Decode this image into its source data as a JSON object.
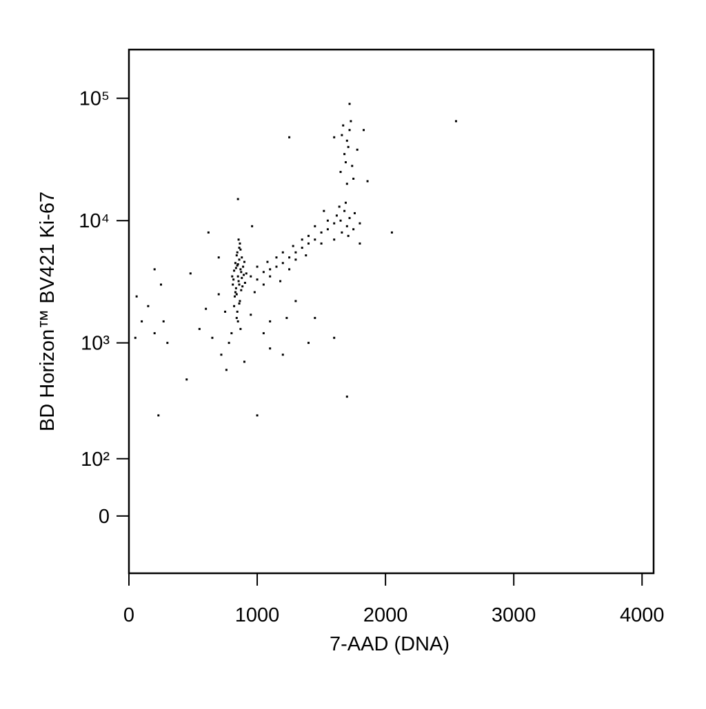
{
  "chart_data": {
    "type": "scatter",
    "xlabel": "7-AAD (DNA)",
    "ylabel": "BD Horizon™ BV421 Ki-67",
    "xlim": [
      0,
      4090
    ],
    "xticks": [
      0,
      1000,
      2000,
      3000,
      4000
    ],
    "yscale": "asinh",
    "ycofactor": 77,
    "ylim": [
      -100,
      250000
    ],
    "yticks": [
      {
        "value": 0,
        "label": "0"
      },
      {
        "value": 100,
        "label": "10²"
      },
      {
        "value": 1000,
        "label": "10³"
      },
      {
        "value": 10000,
        "label": "10⁴"
      },
      {
        "value": 100000,
        "label": "10⁵"
      }
    ],
    "color": "#000000",
    "x": [
      820,
      840,
      860,
      850,
      870,
      830,
      880,
      845,
      860,
      835,
      855,
      875,
      890,
      815,
      865,
      845,
      850,
      870,
      830,
      880,
      900,
      820,
      860,
      840,
      885,
      895,
      810,
      825,
      865,
      855,
      840,
      875,
      905,
      835,
      850,
      915,
      805,
      870,
      860,
      845,
      950,
      1000,
      1050,
      1100,
      1150,
      1200,
      1250,
      1300,
      1350,
      1400,
      1450,
      1500,
      1550,
      1000,
      1100,
      1200,
      1300,
      1400,
      1500,
      1050,
      1150,
      1250,
      1350,
      1450,
      1550,
      1600,
      1620,
      1650,
      1680,
      1700,
      1720,
      1750,
      1640,
      1690,
      1710,
      1760,
      1800,
      1660,
      1600,
      1520,
      1180,
      1380,
      980,
      1080,
      1280,
      1650,
      1680,
      1700,
      1720,
      1690,
      1710,
      1740,
      1660,
      1730,
      1750,
      1700,
      1670,
      1720,
      1780,
      1860,
      1600,
      1830,
      50,
      100,
      150,
      200,
      250,
      300,
      60,
      200,
      230,
      270,
      450,
      480,
      550,
      600,
      620,
      650,
      700,
      720,
      760,
      780,
      800,
      900,
      950,
      1000,
      1050,
      1100,
      1200,
      1250,
      1300,
      1400,
      1450,
      1600,
      1700,
      1800,
      2050,
      2550,
      850,
      960,
      1100,
      1230,
      700,
      750
    ],
    "y": [
      2000,
      2500,
      3000,
      3500,
      4000,
      4500,
      5000,
      5500,
      6000,
      2800,
      3200,
      3800,
      4200,
      3300,
      2200,
      1800,
      1500,
      1300,
      2600,
      3400,
      4600,
      3900,
      4800,
      5200,
      2900,
      3600,
      3000,
      2400,
      6500,
      7000,
      1600,
      2700,
      3100,
      4100,
      4400,
      3700,
      3500,
      5800,
      2100,
      4300,
      3500,
      3300,
      3800,
      4000,
      4200,
      4500,
      5000,
      5500,
      6000,
      6500,
      7000,
      8000,
      8500,
      4200,
      3500,
      5500,
      4800,
      7500,
      6500,
      3000,
      5000,
      4000,
      7000,
      9000,
      10000,
      9500,
      11000,
      10000,
      12000,
      9000,
      10500,
      8500,
      13000,
      14000,
      7500,
      11500,
      9500,
      8000,
      7000,
      12000,
      3200,
      5200,
      2600,
      4600,
      6200,
      25000,
      35000,
      45000,
      55000,
      30000,
      40000,
      28000,
      50000,
      65000,
      22000,
      20000,
      60000,
      90000,
      38000,
      21000,
      48000,
      55000,
      1100,
      1500,
      2000,
      1200,
      3000,
      1000,
      2400,
      4000,
      250,
      1500,
      500,
      3700,
      1300,
      1900,
      8000,
      1100,
      2500,
      800,
      600,
      1000,
      1200,
      700,
      1700,
      250,
      1200,
      900,
      800,
      48000,
      2200,
      1000,
      1600,
      1100,
      360,
      6500,
      8000,
      65000,
      15000,
      9000,
      1500,
      1600,
      5000,
      1800
    ]
  }
}
